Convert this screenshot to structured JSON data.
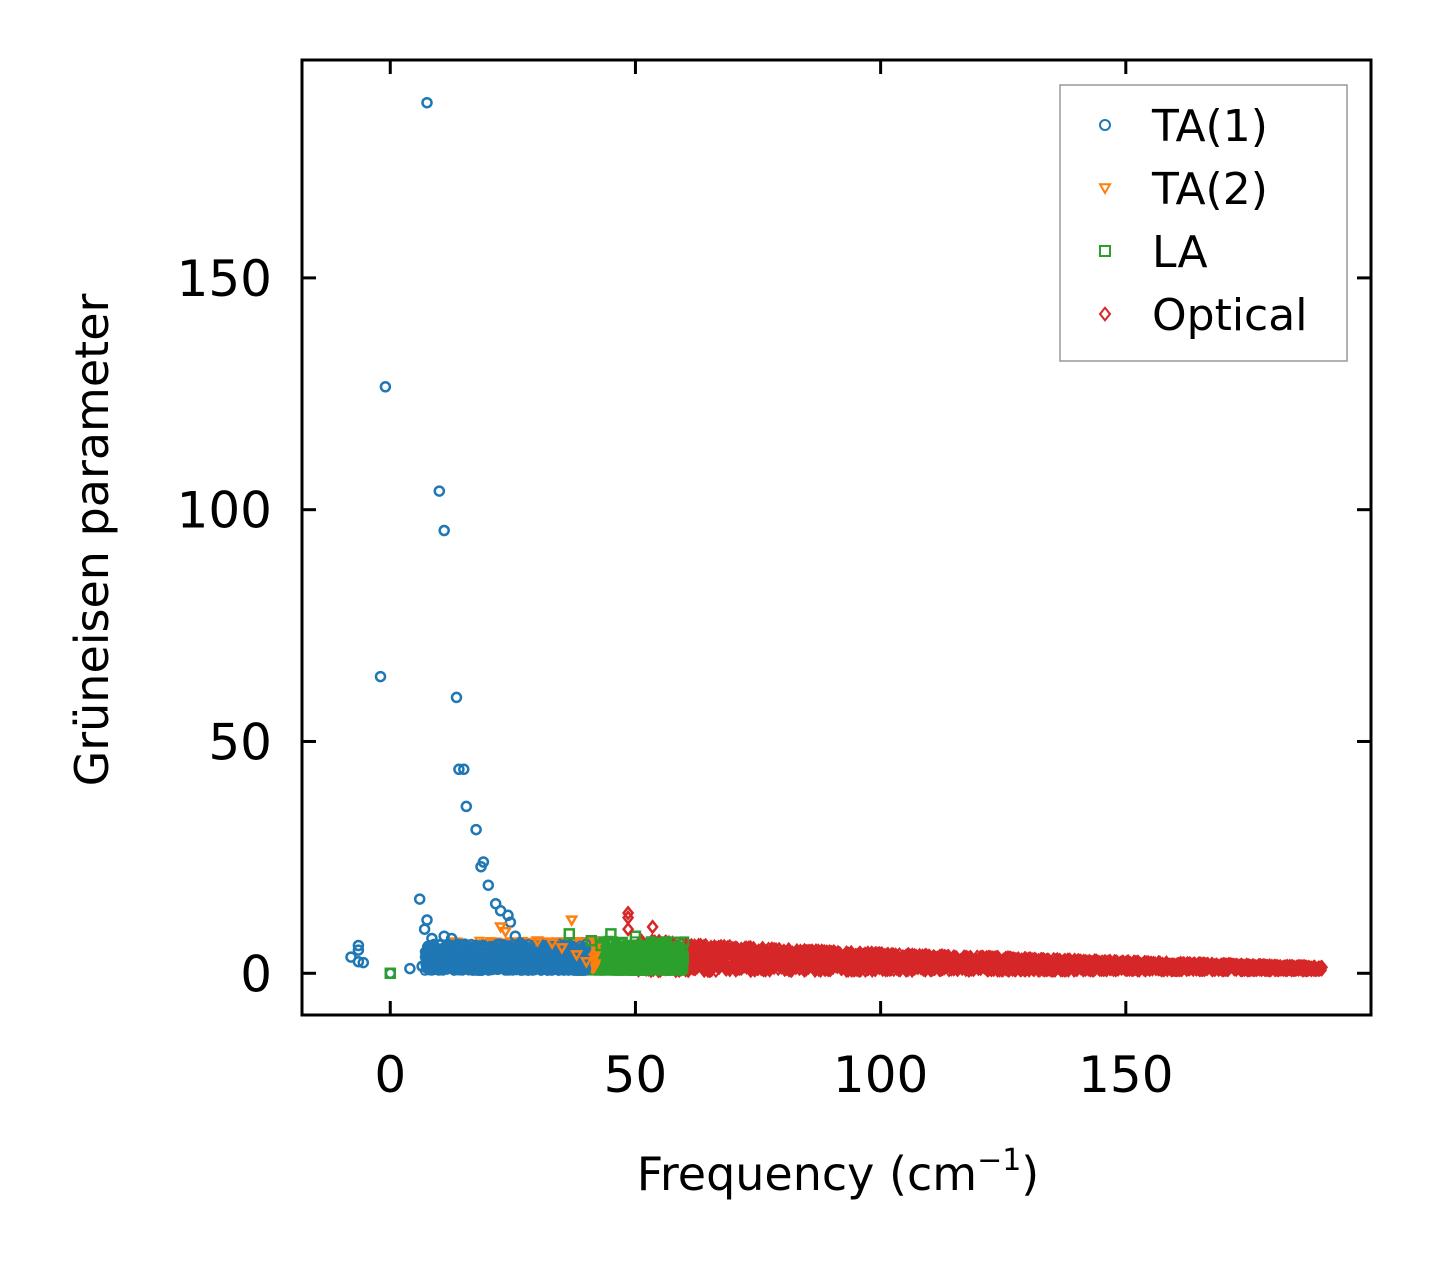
{
  "chart_data": {
    "type": "scatter",
    "xlabel": "Frequency (cm",
    "xlabel_sup": "−1",
    "xlabel_close": ")",
    "ylabel": "Grüneisen parameter",
    "xlim": [
      -18,
      200
    ],
    "ylim": [
      -9,
      197
    ],
    "xticks": [
      0,
      50,
      100,
      150
    ],
    "yticks": [
      0,
      50,
      100,
      150
    ],
    "xtick_labels": [
      "0",
      "50",
      "100",
      "150"
    ],
    "ytick_labels": [
      "0",
      "50",
      "100",
      "150"
    ],
    "legend_position": "top-right",
    "series": [
      {
        "name": "TA(1)",
        "marker": "circle",
        "color": "#1f77b4",
        "points": [
          [
            7.5,
            187.8
          ],
          [
            -1,
            126.5
          ],
          [
            10,
            104
          ],
          [
            11,
            95.5
          ],
          [
            -2,
            64
          ],
          [
            13.5,
            59.5
          ],
          [
            14,
            44
          ],
          [
            15,
            44
          ],
          [
            15.5,
            36
          ],
          [
            17.5,
            31
          ],
          [
            19,
            24
          ],
          [
            18.5,
            23
          ],
          [
            20,
            19
          ],
          [
            6,
            16
          ],
          [
            21.5,
            15
          ],
          [
            22.5,
            13.5
          ],
          [
            24,
            12.5
          ],
          [
            24.5,
            11
          ],
          [
            7.5,
            11.5
          ],
          [
            7,
            9.5
          ],
          [
            8.5,
            7.5
          ],
          [
            11,
            8
          ],
          [
            12.5,
            7.5
          ],
          [
            -6.5,
            6
          ],
          [
            -6.5,
            5
          ],
          [
            -8,
            3.5
          ],
          [
            -6.5,
            2.5
          ],
          [
            -5.5,
            2.3
          ],
          [
            0,
            0
          ],
          [
            4,
            1
          ],
          [
            6.5,
            1.5
          ],
          [
            9,
            5
          ],
          [
            10.5,
            4
          ],
          [
            14,
            6
          ],
          [
            16,
            5
          ],
          [
            25.5,
            8
          ],
          [
            26.5,
            6.5
          ]
        ],
        "cluster": {
          "x": [
            7,
            40
          ],
          "y": [
            0.5,
            6.5
          ],
          "count": 900
        }
      },
      {
        "name": "TA(2)",
        "marker": "triangle-down",
        "color": "#ff7f0e",
        "points": [
          [
            37,
            11.5
          ],
          [
            22.5,
            10
          ],
          [
            23.5,
            9
          ],
          [
            30,
            7
          ],
          [
            33,
            6.5
          ],
          [
            35,
            5.5
          ],
          [
            38,
            4
          ],
          [
            40,
            2.5
          ]
        ],
        "cluster": {
          "x": [
            13,
            42
          ],
          "y": [
            1,
            7
          ],
          "count": 700
        }
      },
      {
        "name": "LA",
        "marker": "square",
        "color": "#2ca02c",
        "points": [
          [
            36.5,
            8.5
          ],
          [
            45,
            8.5
          ],
          [
            50,
            8
          ],
          [
            54,
            6
          ],
          [
            49.5,
            5
          ],
          [
            0,
            0
          ],
          [
            41,
            7
          ],
          [
            43,
            6
          ],
          [
            55,
            3.5
          ],
          [
            58,
            2.5
          ]
        ],
        "cluster": {
          "x": [
            38,
            60
          ],
          "y": [
            0.5,
            7
          ],
          "count": 600
        }
      },
      {
        "name": "Optical",
        "marker": "diamond",
        "color": "#d62728",
        "points": [
          [
            48.5,
            13
          ],
          [
            48.5,
            12
          ],
          [
            53.5,
            10
          ],
          [
            48.5,
            9.5
          ],
          [
            94,
            4.5
          ],
          [
            190,
            1.3
          ]
        ],
        "cluster": {
          "x": [
            50,
            190
          ],
          "y_top": [
            8,
            1.6
          ],
          "y_bottom": [
            0.3,
            0.5
          ],
          "count": 3200
        }
      }
    ]
  }
}
